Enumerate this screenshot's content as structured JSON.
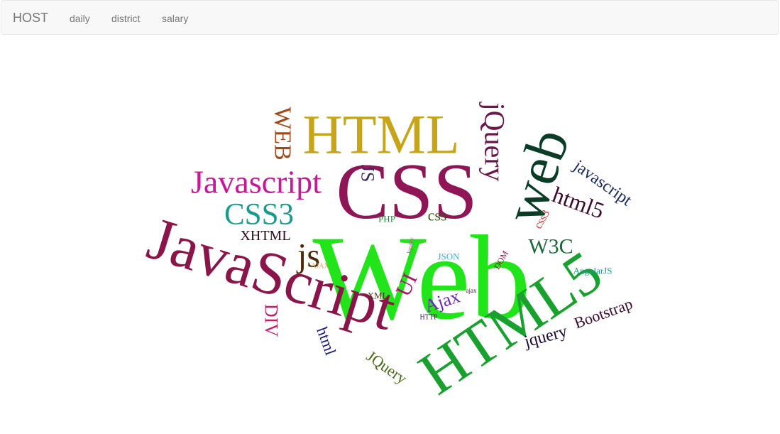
{
  "navbar": {
    "brand": "HOST",
    "links": [
      {
        "label": "daily"
      },
      {
        "label": "district"
      },
      {
        "label": "salary"
      }
    ]
  },
  "wordcloud": {
    "words": [
      {
        "text": "Web",
        "color": "#22e41a"
      },
      {
        "text": "CSS",
        "color": "#8e1656"
      },
      {
        "text": "HTML",
        "color": "#c6a51a"
      },
      {
        "text": "JavaScript",
        "color": "#8a1548"
      },
      {
        "text": "HTML5",
        "color": "#19a02f"
      },
      {
        "text": "web",
        "color": "#0b3c28"
      },
      {
        "text": "Javascript",
        "color": "#c41a96"
      },
      {
        "text": "CSS3",
        "color": "#1a9a8a"
      },
      {
        "text": "jQuery",
        "color": "#6a1848"
      },
      {
        "text": "WEB",
        "color": "#a04a1a"
      },
      {
        "text": "JS",
        "color": "#3e2a5a"
      },
      {
        "text": "js",
        "color": "#4a2a0a"
      },
      {
        "text": "html5",
        "color": "#3a0a2a"
      },
      {
        "text": "javascript",
        "color": "#1a2a5a"
      },
      {
        "text": "XHTML",
        "color": "#2a0a1a"
      },
      {
        "text": "css",
        "color": "#3a5a1a"
      },
      {
        "text": "W3C",
        "color": "#1a6a3a"
      },
      {
        "text": "css3",
        "color": "#c03a3a"
      },
      {
        "text": "PHP",
        "color": "#2a8a3a"
      },
      {
        "text": "JSON",
        "color": "#3ab0d0"
      },
      {
        "text": "Jquery",
        "color": "#c04a8a"
      },
      {
        "text": "DOM",
        "color": "#8a1a3a"
      },
      {
        "text": "AngularJS",
        "color": "#1a9a8a"
      },
      {
        "text": "AJAX",
        "color": "#d0a050"
      },
      {
        "text": "UI",
        "color": "#a01a6a"
      },
      {
        "text": "Ajax",
        "color": "#6a2ab0"
      },
      {
        "text": "ajax",
        "color": "#3a1a2a"
      },
      {
        "text": "XML",
        "color": "#4a3a1a"
      },
      {
        "text": "HTTP",
        "color": "#3a1a5a"
      },
      {
        "text": "DIV",
        "color": "#c0206a"
      },
      {
        "text": "html",
        "color": "#1a1a7a"
      },
      {
        "text": "JQuery",
        "color": "#4a6a1a"
      },
      {
        "text": "jquery",
        "color": "#1a0a3a"
      },
      {
        "text": "Bootstrap",
        "color": "#3a0a2a"
      }
    ]
  }
}
